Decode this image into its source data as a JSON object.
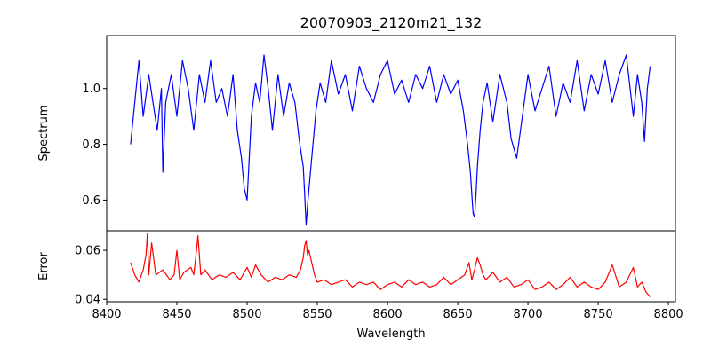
{
  "chart_data": {
    "type": "line",
    "title": "20070903_2120m21_132",
    "xlabel": "Wavelength",
    "xlim": [
      8400,
      8805
    ],
    "x_ticks": [
      "8400",
      "8450",
      "8500",
      "8550",
      "8600",
      "8650",
      "8700",
      "8750",
      "8800"
    ],
    "panels": [
      {
        "name": "spectrum",
        "ylabel": "Spectrum",
        "ylim": [
          0.49,
          1.19
        ],
        "y_ticks": [
          "0.6",
          "0.8",
          "1.0"
        ],
        "grid": false,
        "series": [
          {
            "color": "#0000ff",
            "x": [
              8417,
              8420,
              8423,
              8426,
              8430,
              8433,
              8436,
              8439,
              8440,
              8442,
              8446,
              8450,
              8454,
              8458,
              8462,
              8466,
              8470,
              8474,
              8478,
              8482,
              8486,
              8490,
              8493,
              8496,
              8498,
              8500,
              8503,
              8506,
              8509,
              8512,
              8515,
              8518,
              8522,
              8526,
              8530,
              8534,
              8537,
              8539,
              8540,
              8541,
              8542,
              8543,
              8544,
              8546,
              8549,
              8552,
              8556,
              8560,
              8565,
              8570,
              8575,
              8580,
              8585,
              8590,
              8595,
              8600,
              8605,
              8610,
              8615,
              8620,
              8625,
              8630,
              8635,
              8640,
              8645,
              8650,
              8654,
              8657,
              8659,
              8660,
              8661,
              8662,
              8663,
              8664,
              8666,
              8668,
              8671,
              8675,
              8680,
              8685,
              8688,
              8692,
              8696,
              8700,
              8705,
              8710,
              8715,
              8720,
              8725,
              8730,
              8735,
              8740,
              8745,
              8750,
              8755,
              8760,
              8765,
              8770,
              8775,
              8778,
              8781,
              8783,
              8785,
              8787
            ],
            "values": [
              0.8,
              0.95,
              1.1,
              0.9,
              1.05,
              0.95,
              0.85,
              1.0,
              0.7,
              0.95,
              1.05,
              0.9,
              1.1,
              1.0,
              0.85,
              1.05,
              0.95,
              1.1,
              0.95,
              1.0,
              0.9,
              1.05,
              0.85,
              0.75,
              0.64,
              0.6,
              0.9,
              1.02,
              0.95,
              1.12,
              1.0,
              0.85,
              1.05,
              0.9,
              1.02,
              0.95,
              0.82,
              0.75,
              0.72,
              0.62,
              0.51,
              0.58,
              0.64,
              0.75,
              0.92,
              1.02,
              0.95,
              1.1,
              0.98,
              1.05,
              0.92,
              1.08,
              1.0,
              0.95,
              1.05,
              1.1,
              0.98,
              1.03,
              0.95,
              1.05,
              1.0,
              1.08,
              0.95,
              1.05,
              0.98,
              1.03,
              0.92,
              0.8,
              0.7,
              0.62,
              0.55,
              0.54,
              0.62,
              0.72,
              0.85,
              0.95,
              1.02,
              0.88,
              1.05,
              0.95,
              0.82,
              0.75,
              0.9,
              1.05,
              0.92,
              1.0,
              1.08,
              0.9,
              1.02,
              0.95,
              1.1,
              0.92,
              1.05,
              0.98,
              1.1,
              0.95,
              1.05,
              1.12,
              0.9,
              1.05,
              0.95,
              0.81,
              1.0,
              1.08
            ]
          }
        ]
      },
      {
        "name": "error",
        "ylabel": "Error",
        "ylim": [
          0.039,
          0.068
        ],
        "y_ticks": [
          "0.04",
          "0.06"
        ],
        "grid": false,
        "series": [
          {
            "color": "#ff0000",
            "x": [
              8417,
              8420,
              8423,
              8426,
              8428,
              8429,
              8430,
              8432,
              8435,
              8440,
              8445,
              8448,
              8450,
              8452,
              8455,
              8460,
              8462,
              8464,
              8465,
              8467,
              8470,
              8475,
              8480,
              8485,
              8490,
              8495,
              8500,
              8503,
              8506,
              8510,
              8515,
              8520,
              8525,
              8530,
              8535,
              8538,
              8540,
              8541,
              8542,
              8543,
              8544,
              8546,
              8548,
              8550,
              8555,
              8560,
              8565,
              8570,
              8575,
              8580,
              8585,
              8590,
              8595,
              8600,
              8605,
              8610,
              8615,
              8620,
              8625,
              8630,
              8635,
              8640,
              8645,
              8650,
              8655,
              8658,
              8660,
              8662,
              8664,
              8666,
              8668,
              8670,
              8675,
              8680,
              8685,
              8690,
              8695,
              8700,
              8705,
              8710,
              8715,
              8720,
              8725,
              8730,
              8735,
              8740,
              8745,
              8750,
              8755,
              8760,
              8765,
              8770,
              8775,
              8778,
              8781,
              8784,
              8787
            ],
            "values": [
              0.055,
              0.05,
              0.047,
              0.052,
              0.058,
              0.067,
              0.05,
              0.063,
              0.05,
              0.052,
              0.048,
              0.05,
              0.06,
              0.048,
              0.051,
              0.053,
              0.05,
              0.06,
              0.066,
              0.05,
              0.052,
              0.048,
              0.05,
              0.049,
              0.051,
              0.048,
              0.053,
              0.049,
              0.054,
              0.05,
              0.047,
              0.049,
              0.048,
              0.05,
              0.049,
              0.052,
              0.057,
              0.062,
              0.064,
              0.058,
              0.06,
              0.055,
              0.05,
              0.047,
              0.048,
              0.046,
              0.047,
              0.048,
              0.045,
              0.047,
              0.046,
              0.047,
              0.044,
              0.046,
              0.047,
              0.045,
              0.048,
              0.046,
              0.047,
              0.045,
              0.046,
              0.049,
              0.046,
              0.048,
              0.05,
              0.055,
              0.048,
              0.052,
              0.057,
              0.054,
              0.05,
              0.048,
              0.051,
              0.047,
              0.049,
              0.045,
              0.046,
              0.048,
              0.044,
              0.045,
              0.047,
              0.044,
              0.046,
              0.049,
              0.045,
              0.047,
              0.045,
              0.044,
              0.047,
              0.054,
              0.045,
              0.047,
              0.053,
              0.045,
              0.047,
              0.043,
              0.041
            ]
          }
        ]
      }
    ]
  }
}
